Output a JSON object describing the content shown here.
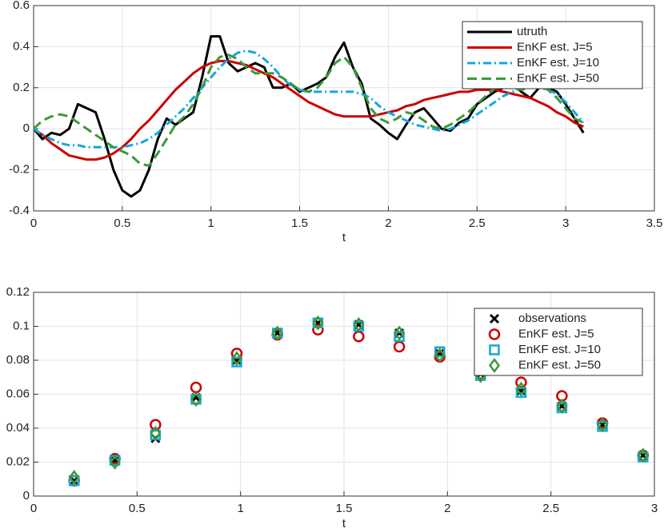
{
  "chart_data": [
    {
      "type": "line",
      "xlabel": "t",
      "xlim": [
        0,
        3.5
      ],
      "ylim": [
        -0.4,
        0.6
      ],
      "xticks": [
        0,
        0.5,
        1,
        1.5,
        2,
        2.5,
        3,
        3.5
      ],
      "yticks": [
        -0.4,
        -0.2,
        0,
        0.2,
        0.4,
        0.6
      ],
      "grid": true,
      "legend": "upper-right",
      "x": [
        0,
        0.05,
        0.1,
        0.15,
        0.2,
        0.25,
        0.3,
        0.35,
        0.4,
        0.45,
        0.5,
        0.55,
        0.6,
        0.65,
        0.7,
        0.75,
        0.8,
        0.85,
        0.9,
        0.95,
        1,
        1.05,
        1.1,
        1.15,
        1.2,
        1.25,
        1.3,
        1.35,
        1.4,
        1.45,
        1.5,
        1.55,
        1.6,
        1.65,
        1.7,
        1.75,
        1.8,
        1.85,
        1.9,
        1.95,
        2,
        2.05,
        2.1,
        2.15,
        2.2,
        2.25,
        2.3,
        2.35,
        2.4,
        2.45,
        2.5,
        2.55,
        2.6,
        2.65,
        2.7,
        2.75,
        2.8,
        2.85,
        2.9,
        2.95,
        3,
        3.05,
        3.1
      ],
      "series": [
        {
          "name": "utruth",
          "color": "#000000",
          "style": "solid",
          "values": [
            0,
            -0.05,
            -0.02,
            -0.03,
            0,
            0.12,
            0.1,
            0.08,
            -0.05,
            -0.2,
            -0.3,
            -0.33,
            -0.3,
            -0.2,
            -0.05,
            0.05,
            0.02,
            0.05,
            0.08,
            0.25,
            0.45,
            0.45,
            0.32,
            0.28,
            0.3,
            0.32,
            0.3,
            0.2,
            0.2,
            0.22,
            0.18,
            0.2,
            0.22,
            0.25,
            0.35,
            0.42,
            0.3,
            0.22,
            0.05,
            0.02,
            -0.02,
            -0.05,
            0.02,
            0.08,
            0.1,
            0.05,
            0,
            -0.01,
            0.03,
            0.05,
            0.12,
            0.15,
            0.18,
            0.2,
            0.22,
            0.18,
            0.15,
            0.2,
            0.2,
            0.18,
            0.12,
            0.05,
            -0.02
          ]
        },
        {
          "name": "EnKF est. J=5",
          "color": "#cc0000",
          "style": "solid",
          "values": [
            0,
            -0.03,
            -0.07,
            -0.1,
            -0.13,
            -0.14,
            -0.15,
            -0.15,
            -0.14,
            -0.12,
            -0.09,
            -0.05,
            0,
            0.04,
            0.09,
            0.14,
            0.19,
            0.23,
            0.27,
            0.3,
            0.32,
            0.33,
            0.33,
            0.32,
            0.31,
            0.29,
            0.27,
            0.25,
            0.22,
            0.19,
            0.16,
            0.13,
            0.11,
            0.09,
            0.07,
            0.06,
            0.06,
            0.06,
            0.06,
            0.07,
            0.08,
            0.09,
            0.11,
            0.12,
            0.14,
            0.15,
            0.16,
            0.17,
            0.18,
            0.18,
            0.19,
            0.19,
            0.19,
            0.18,
            0.17,
            0.16,
            0.15,
            0.13,
            0.11,
            0.08,
            0.06,
            0.03,
            0.01
          ]
        },
        {
          "name": "EnKF est. J=10",
          "color": "#12a8dc",
          "style": "dashdot",
          "values": [
            0,
            -0.03,
            -0.05,
            -0.07,
            -0.08,
            -0.08,
            -0.09,
            -0.09,
            -0.09,
            -0.09,
            -0.09,
            -0.08,
            -0.07,
            -0.05,
            -0.02,
            0.02,
            0.06,
            0.1,
            0.15,
            0.2,
            0.25,
            0.3,
            0.34,
            0.37,
            0.38,
            0.37,
            0.34,
            0.3,
            0.25,
            0.21,
            0.19,
            0.18,
            0.18,
            0.18,
            0.18,
            0.18,
            0.18,
            0.17,
            0.15,
            0.11,
            0.08,
            0.06,
            0.04,
            0.02,
            0.01,
            0,
            -0.01,
            0,
            0.02,
            0.04,
            0.07,
            0.1,
            0.13,
            0.16,
            0.18,
            0.2,
            0.2,
            0.2,
            0.19,
            0.17,
            0.13,
            0.08,
            0.03
          ]
        },
        {
          "name": "EnKF est. J=50",
          "color": "#3a9a3a",
          "style": "dashed",
          "values": [
            0,
            0.04,
            0.06,
            0.07,
            0.06,
            0.03,
            0,
            -0.03,
            -0.06,
            -0.09,
            -0.11,
            -0.13,
            -0.17,
            -0.18,
            -0.12,
            -0.05,
            0.02,
            0.06,
            0.12,
            0.2,
            0.3,
            0.35,
            0.36,
            0.34,
            0.3,
            0.27,
            0.27,
            0.27,
            0.25,
            0.22,
            0.19,
            0.18,
            0.2,
            0.25,
            0.32,
            0.35,
            0.3,
            0.2,
            0.1,
            0.05,
            0.03,
            0.05,
            0.08,
            0.07,
            0.04,
            0.01,
            0,
            0.02,
            0.05,
            0.08,
            0.12,
            0.16,
            0.2,
            0.21,
            0.2,
            0.19,
            0.2,
            0.21,
            0.19,
            0.15,
            0.1,
            0.05,
            0.03
          ]
        }
      ]
    },
    {
      "type": "scatter",
      "xlabel": "t",
      "xlim": [
        0,
        3
      ],
      "ylim": [
        0,
        0.12
      ],
      "xticks": [
        0,
        0.5,
        1,
        1.5,
        2,
        2.5,
        3
      ],
      "yticks": [
        0,
        0.02,
        0.04,
        0.06,
        0.08,
        0.1,
        0.12
      ],
      "grid": true,
      "legend": "upper-right",
      "x": [
        0.196,
        0.393,
        0.589,
        0.785,
        0.982,
        1.178,
        1.374,
        1.571,
        1.767,
        1.963,
        2.16,
        2.356,
        2.553,
        2.749,
        2.945
      ],
      "series": [
        {
          "name": "observations",
          "color": "#000000",
          "marker": "x",
          "values": [
            0.009,
            0.021,
            0.034,
            0.058,
            0.08,
            0.096,
            0.102,
            0.101,
            0.096,
            0.084,
            0.072,
            0.062,
            0.053,
            0.042,
            0.024
          ]
        },
        {
          "name": "EnKF est. J=5",
          "color": "#cc0000",
          "marker": "o",
          "values": [
            0.009,
            0.022,
            0.042,
            0.064,
            0.084,
            0.095,
            0.098,
            0.094,
            0.088,
            0.082,
            0.072,
            0.067,
            0.059,
            0.043,
            0.024
          ]
        },
        {
          "name": "EnKF est. J=10",
          "color": "#12a8dc",
          "marker": "s",
          "values": [
            0.009,
            0.021,
            0.036,
            0.057,
            0.079,
            0.096,
            0.102,
            0.1,
            0.094,
            0.085,
            0.071,
            0.061,
            0.052,
            0.041,
            0.023
          ]
        },
        {
          "name": "EnKF est. J=50",
          "color": "#3a9a3a",
          "marker": "d",
          "values": [
            0.011,
            0.02,
            0.037,
            0.057,
            0.081,
            0.096,
            0.102,
            0.101,
            0.096,
            0.083,
            0.071,
            0.063,
            0.053,
            0.042,
            0.024
          ]
        }
      ]
    }
  ]
}
